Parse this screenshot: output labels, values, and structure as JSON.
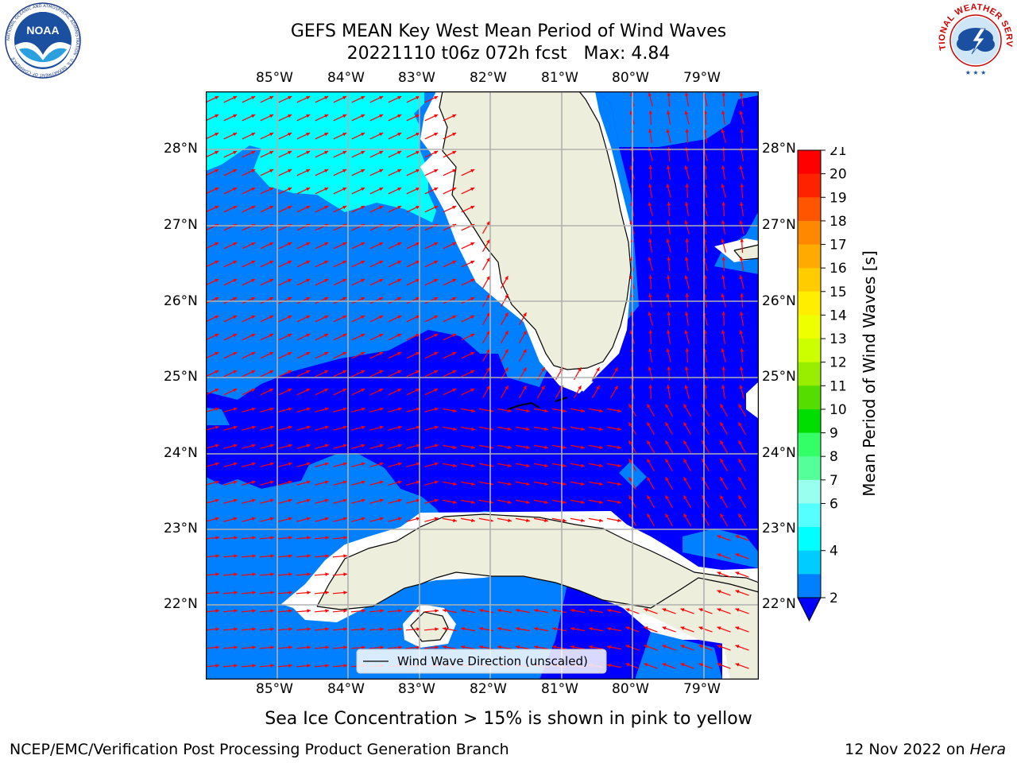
{
  "header": {
    "title_line1": "GEFS MEAN Key West Mean Period of Wind Waves",
    "title_line2": "20221110 t06z 072h fcst   Max: 4.84"
  },
  "logos": {
    "left": "NOAA",
    "left_ring": "NATIONAL OCEANIC AND ATMOSPHERIC ADMINISTRATION · U.S. DEPARTMENT OF COMMERCE",
    "right_ring": "NATIONAL WEATHER SERVICE"
  },
  "map": {
    "lon_labels": [
      "85°W",
      "84°W",
      "83°W",
      "82°W",
      "81°W",
      "80°W",
      "79°W"
    ],
    "lat_labels": [
      "28°N",
      "27°N",
      "26°N",
      "25°N",
      "24°N",
      "23°N",
      "22°N"
    ],
    "legend_label": "Wind Wave Direction (unscaled)",
    "colors": {
      "land": "#eeeedd",
      "band_2_4": "#0080ff",
      "band_4_6": "#00ffff",
      "under_2": "#0000ff",
      "arrows": "#ff0000",
      "grid": "#b0b0b0"
    }
  },
  "colorbar": {
    "label": "Mean Period of Wind Waves [s]",
    "ticks": [
      "21",
      "20",
      "19",
      "18",
      "17",
      "16",
      "15",
      "14",
      "13",
      "12",
      "11",
      "10",
      "9",
      "8",
      "7",
      "6",
      "4",
      "2"
    ],
    "colors": [
      "#ff0000",
      "#ff2200",
      "#ff5500",
      "#ff8800",
      "#ffaa00",
      "#ffcc00",
      "#ffee00",
      "#eeff00",
      "#ccff00",
      "#99ee00",
      "#55dd00",
      "#00dd00",
      "#33ff66",
      "#55ff99",
      "#99ffee",
      "#55ffff",
      "#00ffff",
      "#00ccff",
      "#0080ff"
    ],
    "extend_color": "#0000ff"
  },
  "footer": {
    "note": "Sea Ice Concentration > 15% is shown in pink to yellow",
    "credit": "NCEP/EMC/Verification Post Processing Product Generation Branch",
    "date": "12 Nov 2022 on",
    "machine": "Hera"
  }
}
